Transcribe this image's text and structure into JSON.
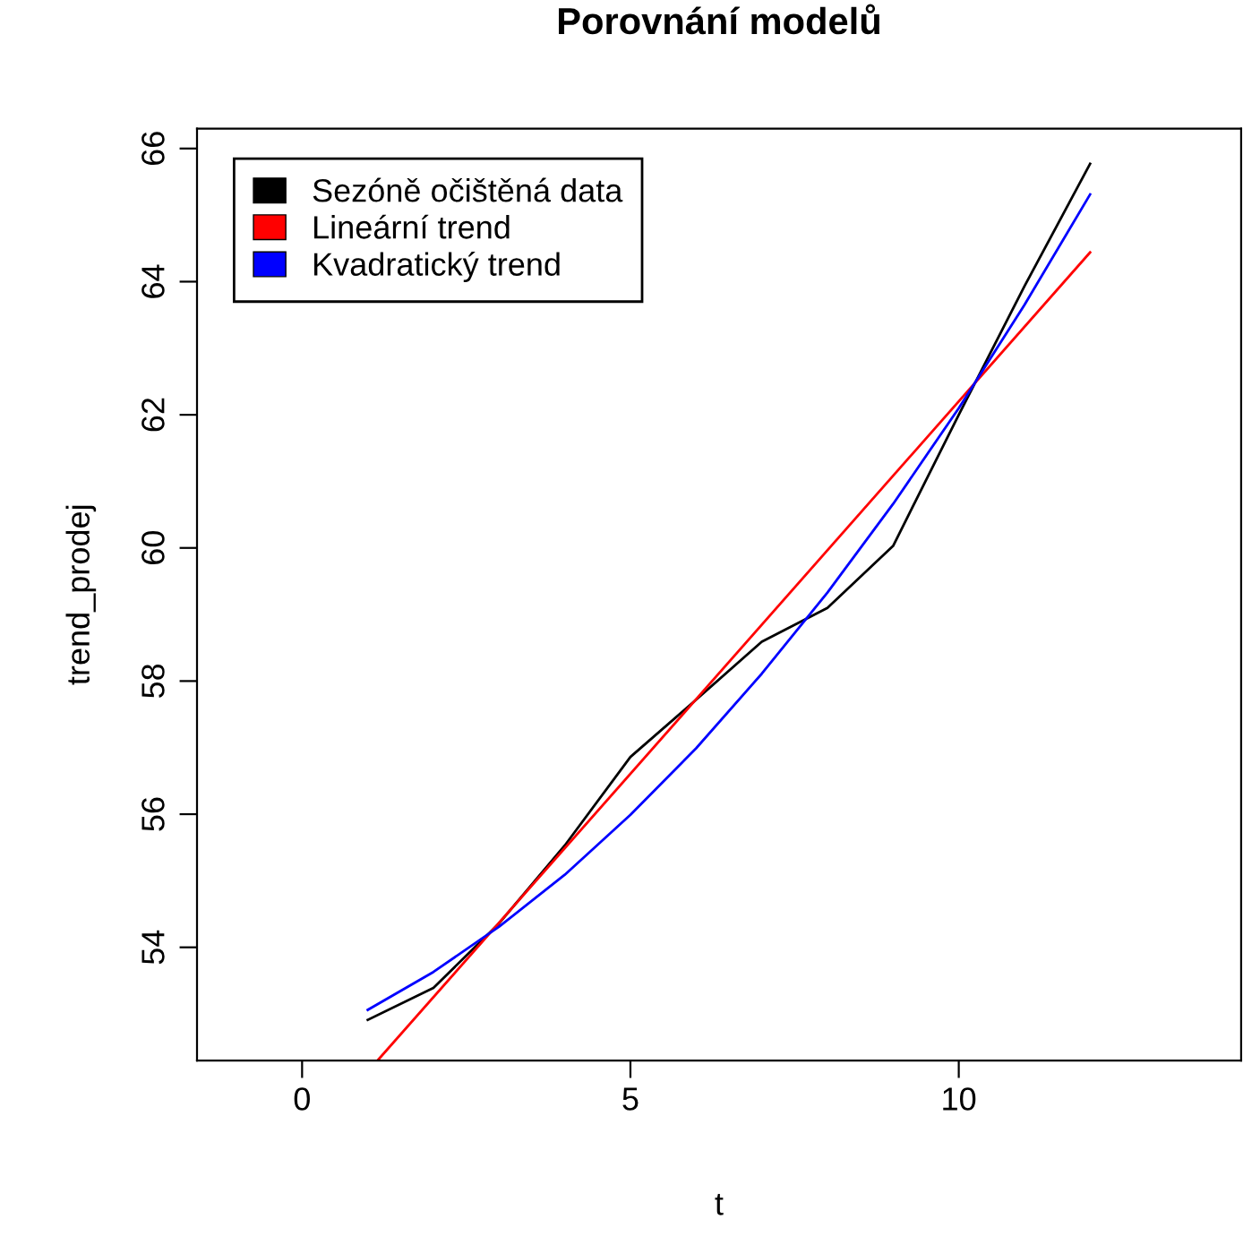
{
  "chart_data": {
    "type": "line",
    "title": "Porovnání modelů",
    "xlabel": "t",
    "ylabel": "trend_prodej",
    "xlim": [
      -1.6,
      14.3
    ],
    "ylim": [
      52.3,
      66.3
    ],
    "xticks": [
      0,
      5,
      10
    ],
    "yticks": [
      54,
      56,
      58,
      60,
      62,
      64,
      66
    ],
    "grid": false,
    "legend": "top left",
    "line_style": "solid",
    "marker": "none",
    "series": [
      {
        "name": "Sezóně očištěná data",
        "color": "#000000",
        "x": [
          1,
          2,
          3,
          4,
          5,
          6,
          7,
          8,
          9,
          10,
          11,
          12
        ],
        "values": [
          52.91,
          53.39,
          54.36,
          55.53,
          56.86,
          57.72,
          58.59,
          59.1,
          60.03,
          62.0,
          63.93,
          65.77
        ]
      },
      {
        "name": "Lineární trend",
        "color": "#ff0000",
        "x": [
          1.15,
          12
        ],
        "values": [
          52.3,
          64.44
        ]
      },
      {
        "name": "Kvadratický trend",
        "color": "#0000ff",
        "x": [
          1,
          2,
          3,
          4,
          5,
          6,
          7,
          8,
          9,
          10,
          11,
          12
        ],
        "values": [
          53.06,
          53.63,
          54.31,
          55.09,
          55.99,
          56.99,
          58.11,
          59.33,
          60.66,
          62.1,
          63.65,
          65.31
        ]
      }
    ]
  }
}
